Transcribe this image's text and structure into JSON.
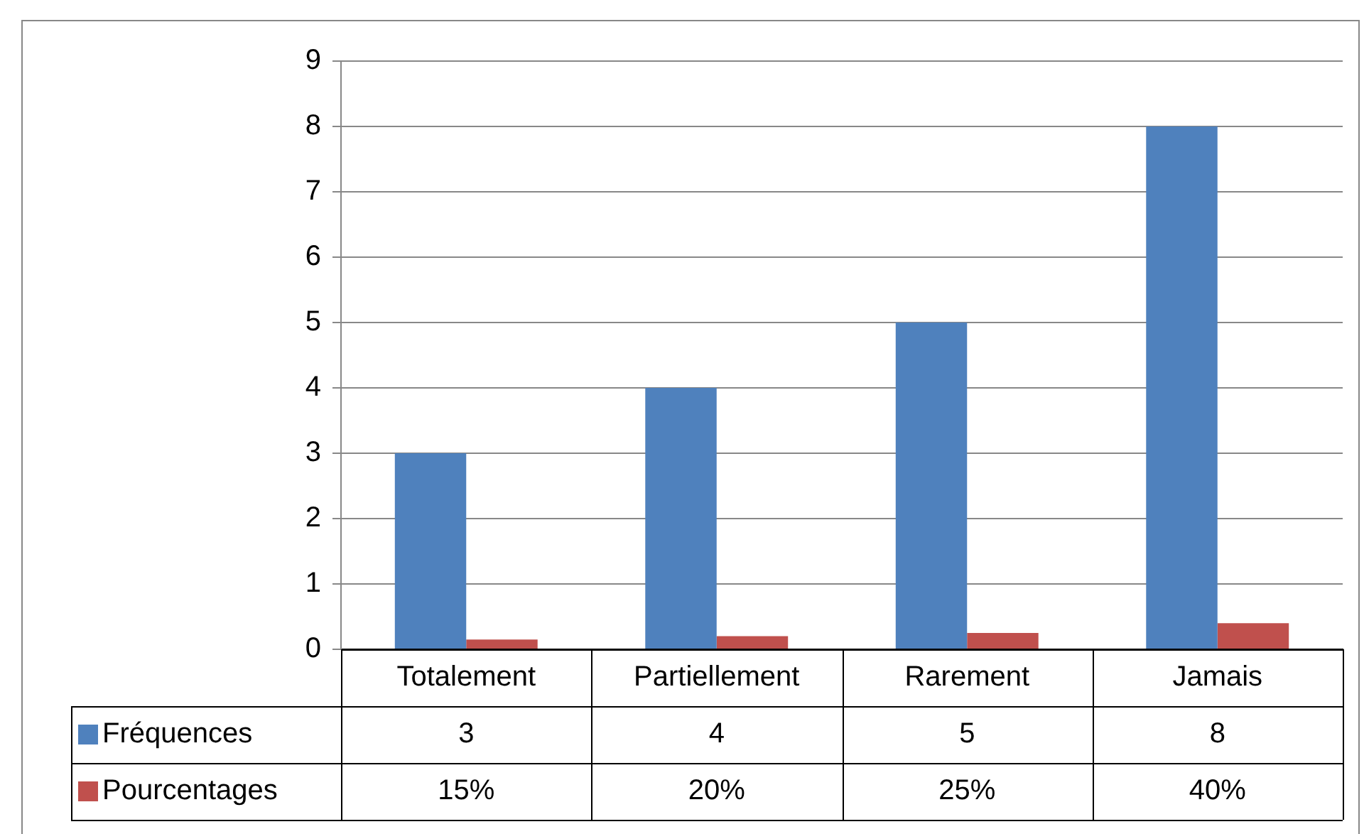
{
  "chart_data": {
    "type": "bar",
    "categories": [
      "Totalement",
      "Partiellement",
      "Rarement",
      "Jamais"
    ],
    "series": [
      {
        "name": "Fréquences",
        "color": "#4f81bd",
        "values": [
          3,
          4,
          5,
          8
        ],
        "value_labels": [
          "3",
          "4",
          "5",
          "8"
        ]
      },
      {
        "name": "Pourcentages",
        "color": "#c0504d",
        "values": [
          0.15,
          0.2,
          0.25,
          0.4
        ],
        "value_labels": [
          "15%",
          "20%",
          "25%",
          "40%"
        ]
      }
    ],
    "ylim": [
      0,
      9
    ],
    "yticks": [
      0,
      1,
      2,
      3,
      4,
      5,
      6,
      7,
      8,
      9
    ],
    "grid": "y",
    "legend": "bottom"
  }
}
